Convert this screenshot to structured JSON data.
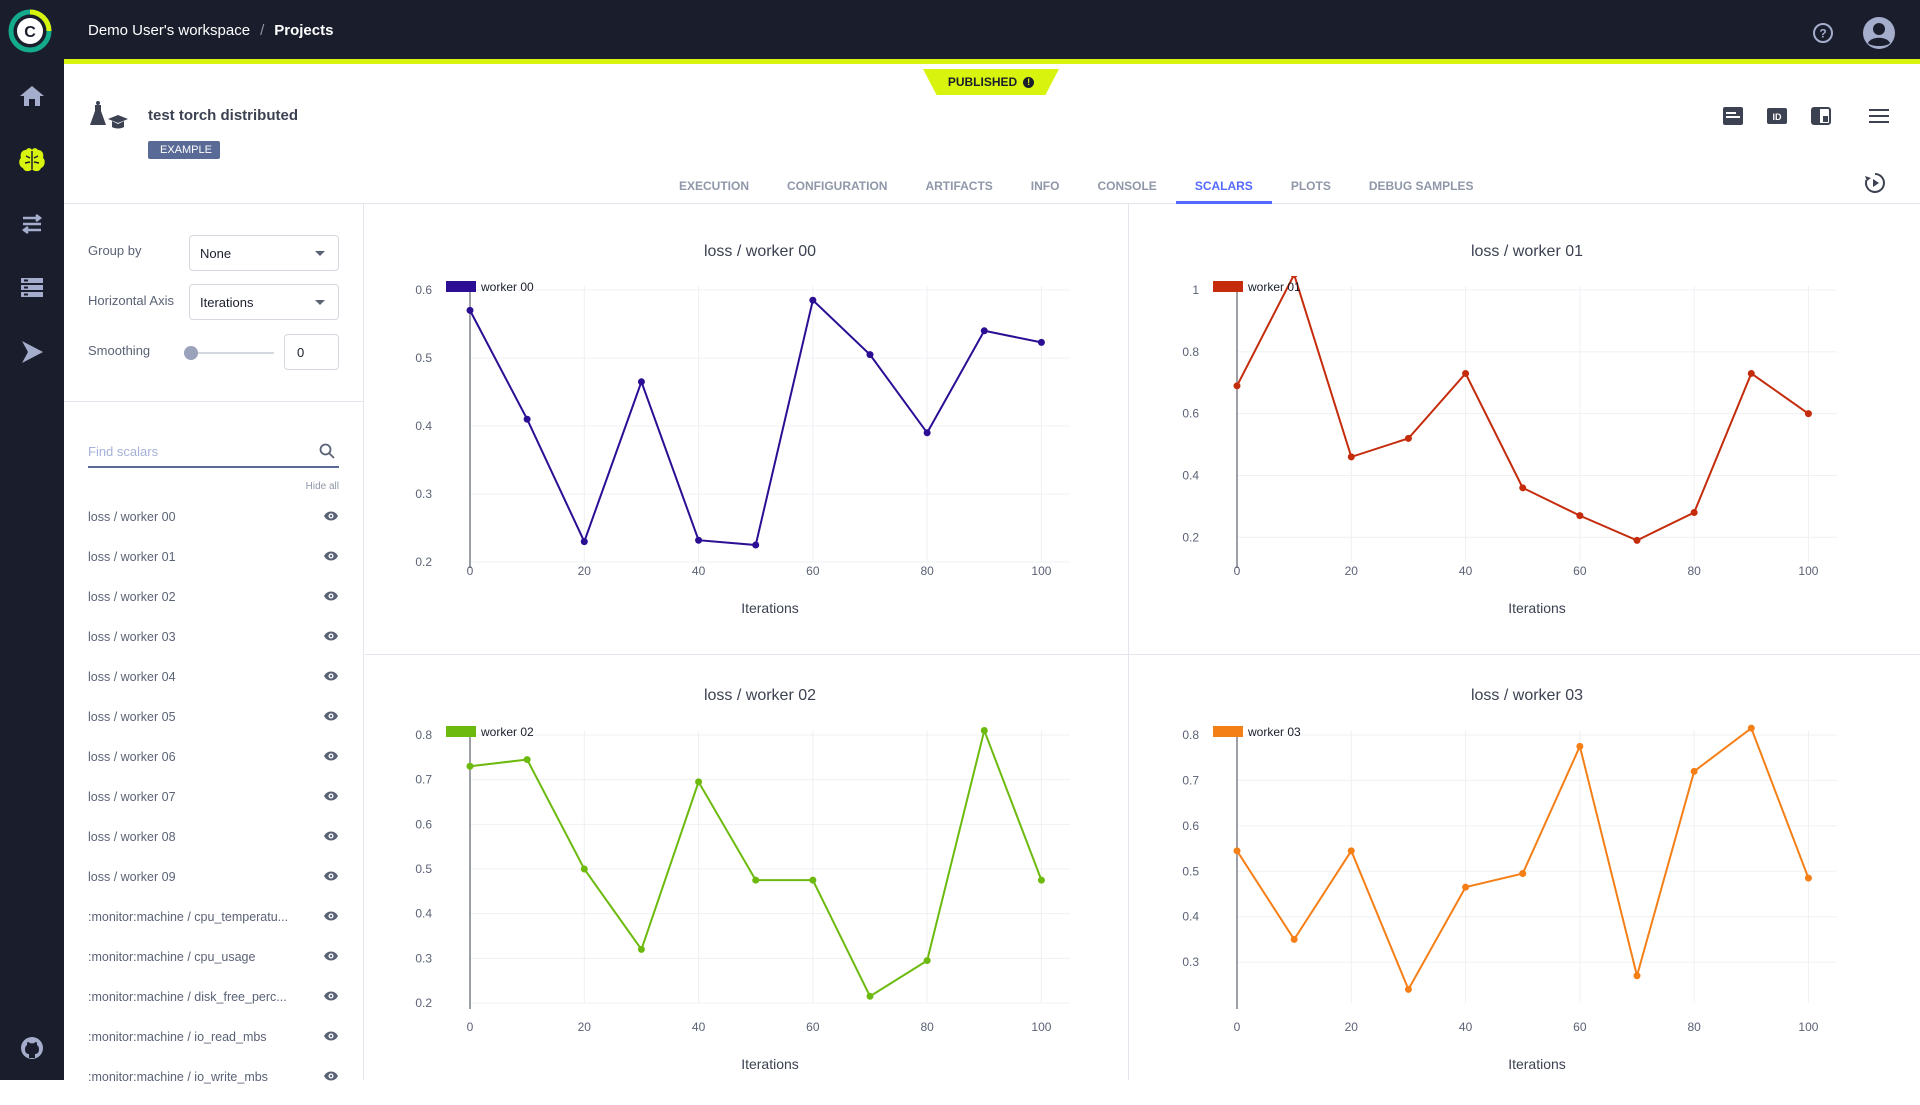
{
  "topbar": {
    "workspace": "Demo User's workspace",
    "separator": "/",
    "project": "Projects"
  },
  "nav": {
    "items": [
      "home-icon",
      "brain-icon",
      "pipelines-icon",
      "datasets-icon",
      "workers-icon"
    ],
    "bottom": "github-icon"
  },
  "status_badge": "PUBLISHED",
  "task": {
    "title": "test torch distributed",
    "tag": "EXAMPLE"
  },
  "tabs": [
    "EXECUTION",
    "CONFIGURATION",
    "ARTIFACTS",
    "INFO",
    "CONSOLE",
    "SCALARS",
    "PLOTS",
    "DEBUG SAMPLES"
  ],
  "active_tab": "SCALARS",
  "controls": {
    "group_by_label": "Group by",
    "group_by_value": "None",
    "haxis_label": "Horizontal Axis",
    "haxis_value": "Iterations",
    "smoothing_label": "Smoothing",
    "smoothing_value": "0",
    "search_placeholder": "Find scalars",
    "hide_all": "Hide all"
  },
  "scalars": [
    "loss / worker 00",
    "loss / worker 01",
    "loss / worker 02",
    "loss / worker 03",
    "loss / worker 04",
    "loss / worker 05",
    "loss / worker 06",
    "loss / worker 07",
    "loss / worker 08",
    "loss / worker 09",
    ":monitor:machine / cpu_temperatu...",
    ":monitor:machine / cpu_usage",
    ":monitor:machine / disk_free_perc...",
    ":monitor:machine / io_read_mbs",
    ":monitor:machine / io_write_mbs"
  ],
  "chart_data": [
    {
      "type": "line",
      "title": "loss / worker 00",
      "xlabel": "Iterations",
      "x": [
        0,
        10,
        20,
        30,
        40,
        50,
        60,
        70,
        80,
        90,
        100
      ],
      "series": [
        {
          "name": "worker 00",
          "color": "#2b0e94",
          "values": [
            0.57,
            0.41,
            0.23,
            0.465,
            0.232,
            0.225,
            0.585,
            0.505,
            0.39,
            0.54,
            0.523
          ]
        }
      ],
      "xlim": [
        0,
        105
      ],
      "ylim": [
        0.2,
        0.6
      ],
      "yticks": [
        0.2,
        0.3,
        0.4,
        0.5,
        0.6
      ],
      "xticks": [
        0,
        20,
        40,
        60,
        80,
        100
      ]
    },
    {
      "type": "line",
      "title": "loss / worker 01",
      "xlabel": "Iterations",
      "x": [
        0,
        10,
        20,
        30,
        40,
        50,
        60,
        70,
        80,
        90,
        100
      ],
      "series": [
        {
          "name": "worker 01",
          "color": "#c42c0c",
          "values": [
            0.69,
            1.05,
            0.46,
            0.52,
            0.73,
            0.36,
            0.27,
            0.19,
            0.28,
            0.73,
            0.6
          ]
        }
      ],
      "xlim": [
        0,
        105
      ],
      "ylim": [
        0.12,
        1.0
      ],
      "yticks": [
        0.2,
        0.4,
        0.6,
        0.8,
        1
      ],
      "xticks": [
        0,
        20,
        40,
        60,
        80,
        100
      ]
    },
    {
      "type": "line",
      "title": "loss / worker 02",
      "xlabel": "Iterations",
      "x": [
        0,
        10,
        20,
        30,
        40,
        50,
        60,
        70,
        80,
        90,
        100
      ],
      "series": [
        {
          "name": "worker 02",
          "color": "#6cba0e",
          "values": [
            0.73,
            0.745,
            0.5,
            0.32,
            0.695,
            0.475,
            0.475,
            0.215,
            0.295,
            0.81,
            0.475
          ]
        }
      ],
      "xlim": [
        0,
        105
      ],
      "ylim": [
        0.2,
        0.8
      ],
      "yticks": [
        0.2,
        0.3,
        0.4,
        0.5,
        0.6,
        0.7,
        0.8
      ],
      "xticks": [
        0,
        20,
        40,
        60,
        80,
        100
      ]
    },
    {
      "type": "line",
      "title": "loss / worker 03",
      "xlabel": "Iterations",
      "x": [
        0,
        10,
        20,
        30,
        40,
        50,
        60,
        70,
        80,
        90,
        100
      ],
      "series": [
        {
          "name": "worker 03",
          "color": "#f57f17",
          "values": [
            0.545,
            0.35,
            0.545,
            0.24,
            0.465,
            0.495,
            0.775,
            0.27,
            0.72,
            0.815,
            0.485
          ]
        }
      ],
      "xlim": [
        0,
        105
      ],
      "ylim": [
        0.21,
        0.8
      ],
      "yticks": [
        0.3,
        0.4,
        0.5,
        0.6,
        0.7,
        0.8
      ],
      "xticks": [
        0,
        20,
        40,
        60,
        80,
        100
      ]
    }
  ]
}
